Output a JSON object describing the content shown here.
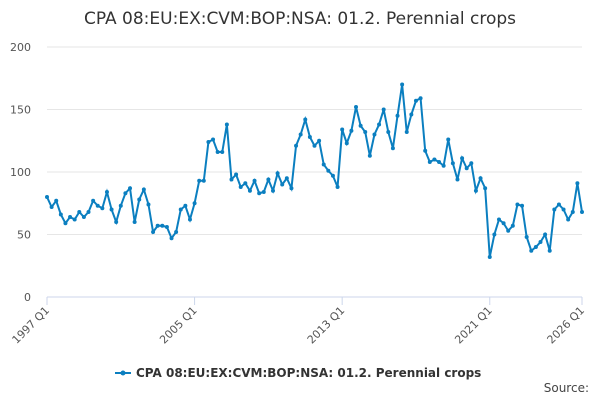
{
  "chart_data": {
    "type": "line",
    "title": "CPA 08:EU:EX:CVM:BOP:NSA: 01.2. Perennial crops",
    "categories": [
      "1997 Q1",
      null,
      null,
      null,
      null,
      null,
      null,
      null,
      null,
      null,
      null,
      null,
      null,
      null,
      null,
      null,
      null,
      null,
      null,
      null,
      null,
      null,
      null,
      null,
      null,
      null,
      null,
      null,
      null,
      null,
      null,
      null,
      "2005 Q1",
      null,
      null,
      null,
      null,
      null,
      null,
      null,
      null,
      null,
      null,
      null,
      null,
      null,
      null,
      null,
      null,
      null,
      null,
      null,
      null,
      null,
      null,
      null,
      null,
      null,
      null,
      null,
      null,
      null,
      null,
      null,
      "2013 Q1",
      null,
      null,
      null,
      null,
      null,
      null,
      null,
      null,
      null,
      null,
      null,
      null,
      null,
      null,
      null,
      null,
      null,
      null,
      null,
      null,
      null,
      null,
      null,
      null,
      null,
      null,
      null,
      null,
      null,
      null,
      null,
      "2021 Q1",
      null,
      null,
      null,
      null,
      null,
      null,
      null,
      null,
      null,
      null,
      null,
      null,
      null,
      null,
      null,
      null,
      null,
      null,
      null,
      "2026 Q1"
    ],
    "series": [
      {
        "name": "CPA 08:EU:EX:CVM:BOP:NSA: 01.2. Perennial crops",
        "color": "#0b7fc0",
        "values": [
          80,
          72,
          77,
          66,
          59,
          64,
          62,
          68,
          64,
          68,
          77,
          73,
          71,
          84,
          70,
          60,
          73,
          83,
          87,
          60,
          78,
          86,
          74,
          52,
          57,
          57,
          56,
          47,
          52,
          70,
          73,
          62,
          75,
          93,
          93,
          124,
          126,
          116,
          116,
          138,
          94,
          98,
          88,
          91,
          85,
          93,
          83,
          84,
          94,
          85,
          99,
          90,
          95,
          87,
          121,
          130,
          142,
          128,
          121,
          125,
          106,
          101,
          97,
          88,
          134,
          123,
          133,
          152,
          137,
          132,
          113,
          130,
          138,
          150,
          132,
          119,
          145,
          170,
          132,
          146,
          157,
          159,
          117,
          108,
          110,
          108,
          105,
          126,
          107,
          94,
          111,
          103,
          107,
          85,
          95,
          87,
          32,
          50,
          62,
          59,
          53,
          57,
          74,
          73,
          48,
          37,
          40,
          44,
          50,
          37,
          70,
          74,
          70,
          62,
          68,
          91,
          68
        ]
      }
    ],
    "ylim": [
      0,
      200
    ],
    "yticks": [
      0,
      50,
      100,
      150,
      200
    ],
    "grid": true,
    "source_label": "Source:"
  }
}
